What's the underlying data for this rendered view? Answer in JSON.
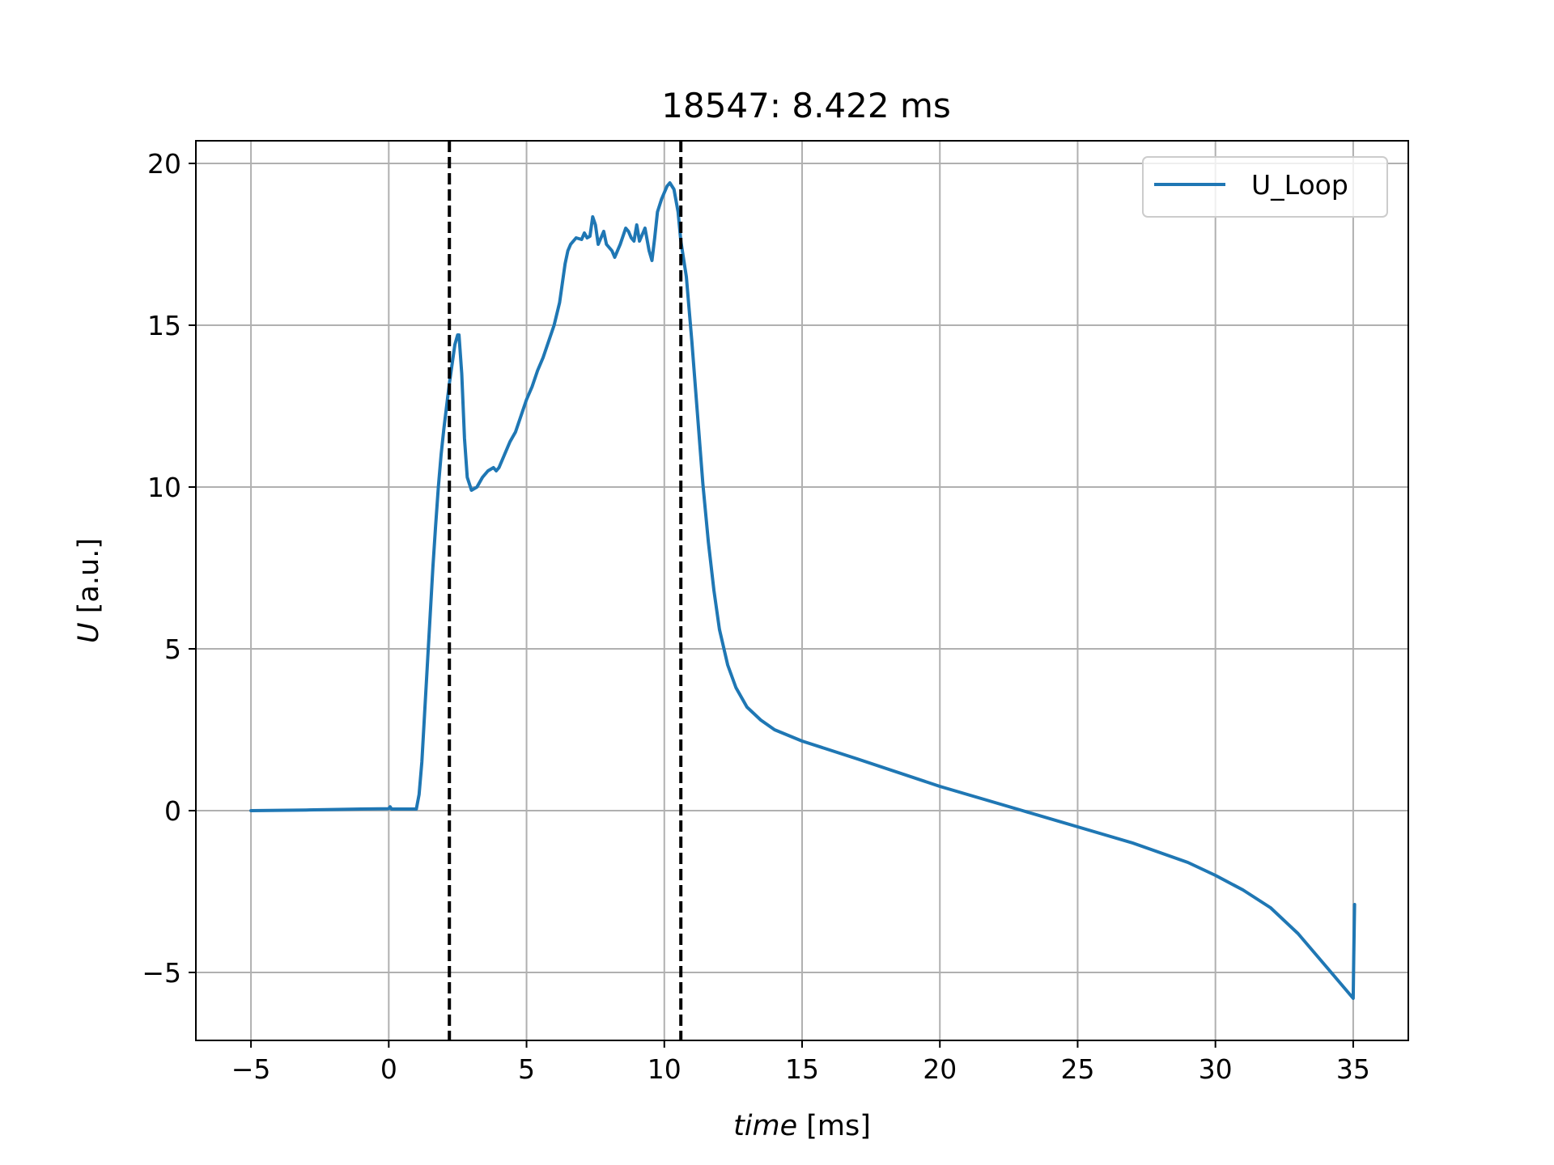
{
  "chart_data": {
    "type": "line",
    "title": "18547: 8.422 ms",
    "xlabel": "time",
    "xlabel_unit": "[ms]",
    "ylabel": "U",
    "ylabel_unit": "[a.u.]",
    "xlim": [
      -7,
      37
    ],
    "ylim": [
      -7.1,
      20.7
    ],
    "xticks": [
      -5,
      0,
      5,
      10,
      15,
      20,
      25,
      30,
      35
    ],
    "yticks": [
      -5,
      0,
      5,
      10,
      15,
      20
    ],
    "grid": true,
    "legend_position": "top-right",
    "series": [
      {
        "name": "U_Loop",
        "color": "#1f77b4",
        "points": [
          [
            -5,
            0.0
          ],
          [
            -3,
            0.02
          ],
          [
            -1,
            0.05
          ],
          [
            0,
            0.06
          ],
          [
            0.05,
            0.12
          ],
          [
            0.1,
            0.05
          ],
          [
            0.5,
            0.05
          ],
          [
            1.0,
            0.05
          ],
          [
            1.1,
            0.5
          ],
          [
            1.2,
            1.5
          ],
          [
            1.3,
            3.0
          ],
          [
            1.4,
            4.5
          ],
          [
            1.5,
            6.0
          ],
          [
            1.6,
            7.5
          ],
          [
            1.7,
            8.8
          ],
          [
            1.8,
            10.0
          ],
          [
            1.9,
            11.0
          ],
          [
            2.0,
            11.8
          ],
          [
            2.1,
            12.5
          ],
          [
            2.2,
            13.2
          ],
          [
            2.3,
            13.8
          ],
          [
            2.4,
            14.4
          ],
          [
            2.5,
            14.7
          ],
          [
            2.55,
            14.7
          ],
          [
            2.65,
            13.5
          ],
          [
            2.75,
            11.5
          ],
          [
            2.85,
            10.3
          ],
          [
            3.0,
            9.9
          ],
          [
            3.2,
            10.0
          ],
          [
            3.4,
            10.3
          ],
          [
            3.6,
            10.5
          ],
          [
            3.8,
            10.6
          ],
          [
            3.9,
            10.5
          ],
          [
            4.0,
            10.6
          ],
          [
            4.2,
            11.0
          ],
          [
            4.4,
            11.4
          ],
          [
            4.6,
            11.7
          ],
          [
            4.8,
            12.2
          ],
          [
            5.0,
            12.7
          ],
          [
            5.2,
            13.1
          ],
          [
            5.4,
            13.6
          ],
          [
            5.6,
            14.0
          ],
          [
            5.8,
            14.5
          ],
          [
            6.0,
            15.0
          ],
          [
            6.2,
            15.7
          ],
          [
            6.3,
            16.3
          ],
          [
            6.4,
            16.9
          ],
          [
            6.5,
            17.3
          ],
          [
            6.6,
            17.5
          ],
          [
            6.7,
            17.6
          ],
          [
            6.8,
            17.7
          ],
          [
            7.0,
            17.65
          ],
          [
            7.1,
            17.85
          ],
          [
            7.2,
            17.7
          ],
          [
            7.3,
            17.75
          ],
          [
            7.4,
            18.35
          ],
          [
            7.5,
            18.1
          ],
          [
            7.6,
            17.5
          ],
          [
            7.8,
            17.9
          ],
          [
            7.9,
            17.5
          ],
          [
            8.1,
            17.3
          ],
          [
            8.2,
            17.1
          ],
          [
            8.4,
            17.5
          ],
          [
            8.6,
            18.0
          ],
          [
            8.7,
            17.9
          ],
          [
            8.8,
            17.7
          ],
          [
            8.9,
            17.6
          ],
          [
            9.0,
            18.1
          ],
          [
            9.1,
            17.6
          ],
          [
            9.2,
            17.8
          ],
          [
            9.3,
            18.0
          ],
          [
            9.45,
            17.3
          ],
          [
            9.55,
            17.0
          ],
          [
            9.65,
            17.7
          ],
          [
            9.75,
            18.5
          ],
          [
            9.9,
            18.9
          ],
          [
            10.1,
            19.3
          ],
          [
            10.2,
            19.4
          ],
          [
            10.35,
            19.2
          ],
          [
            10.5,
            18.5
          ],
          [
            10.6,
            17.6
          ],
          [
            10.8,
            16.5
          ],
          [
            11.0,
            14.5
          ],
          [
            11.2,
            12.3
          ],
          [
            11.4,
            10.1
          ],
          [
            11.6,
            8.3
          ],
          [
            11.8,
            6.8
          ],
          [
            12.0,
            5.6
          ],
          [
            12.3,
            4.5
          ],
          [
            12.6,
            3.8
          ],
          [
            13.0,
            3.2
          ],
          [
            13.5,
            2.8
          ],
          [
            14.0,
            2.5
          ],
          [
            15.0,
            2.15
          ],
          [
            17.0,
            1.6
          ],
          [
            20.0,
            0.75
          ],
          [
            23.0,
            0.0
          ],
          [
            25.0,
            -0.5
          ],
          [
            27.0,
            -1.0
          ],
          [
            29.0,
            -1.6
          ],
          [
            30.0,
            -2.0
          ],
          [
            31.0,
            -2.45
          ],
          [
            32.0,
            -3.0
          ],
          [
            33.0,
            -3.8
          ],
          [
            34.0,
            -4.8
          ],
          [
            34.5,
            -5.3
          ],
          [
            34.9,
            -5.7
          ],
          [
            35.0,
            -5.8
          ],
          [
            35.02,
            -4.5
          ],
          [
            35.05,
            -2.9
          ]
        ]
      }
    ],
    "vlines": [
      {
        "x": 2.2,
        "style": "dashed",
        "color": "#000000"
      },
      {
        "x": 10.6,
        "style": "dashed",
        "color": "#000000"
      }
    ]
  }
}
